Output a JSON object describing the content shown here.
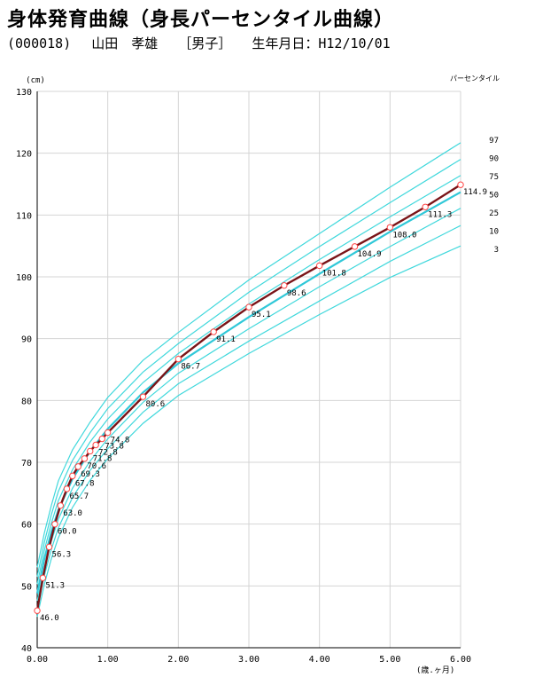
{
  "header": {
    "title": "身体発育曲線（身長パーセンタイル曲線）",
    "patient_id": "(000018)",
    "patient_name": "山田　孝雄",
    "sex": "［男子］",
    "birthdate": "生年月日：H12/10/01"
  },
  "chart_data": {
    "type": "line",
    "title": "身体発育曲線（身長パーセンタイル曲線）",
    "ylabel": "(cm)",
    "xlabel": "(歳.ヶ月)",
    "legend_title": "パーセンタイル",
    "xlim": [
      0,
      6
    ],
    "ylim": [
      40,
      130
    ],
    "x_ticks": [
      0,
      1,
      2,
      3,
      4,
      5,
      6
    ],
    "x_tick_labels": [
      "0.00",
      "1.00",
      "2.00",
      "3.00",
      "4.00",
      "5.00",
      "6.00"
    ],
    "y_ticks": [
      40,
      50,
      60,
      70,
      80,
      90,
      100,
      110,
      120,
      130
    ],
    "y_tick_labels": [
      "40",
      "50",
      "60",
      "70",
      "80",
      "90",
      "100",
      "110",
      "120",
      "130"
    ],
    "grid": true,
    "colors": {
      "percentile": "#40d8dc",
      "percentile50": "#30c8d8",
      "patient": "#7a1418",
      "marker": "#ff4444"
    },
    "percentile_x": [
      0,
      0.1,
      0.2,
      0.3,
      0.5,
      0.75,
      1.0,
      1.5,
      2.0,
      3.0,
      4.0,
      5.0,
      6.0
    ],
    "percentiles": [
      {
        "name": "97",
        "values": [
          53.0,
          58.5,
          63.0,
          67.0,
          72.0,
          76.5,
          80.5,
          86.5,
          91.0,
          99.5,
          107.0,
          114.5,
          121.7
        ]
      },
      {
        "name": "90",
        "values": [
          51.5,
          57.0,
          61.5,
          65.3,
          70.3,
          74.8,
          78.7,
          84.6,
          89.2,
          97.5,
          104.9,
          112.0,
          119.0
        ]
      },
      {
        "name": "75",
        "values": [
          50.3,
          55.7,
          60.1,
          63.8,
          68.8,
          73.3,
          77.0,
          82.9,
          87.6,
          95.6,
          102.8,
          109.7,
          116.4
        ]
      },
      {
        "name": "50",
        "values": [
          48.8,
          54.3,
          58.7,
          62.3,
          67.3,
          71.8,
          75.4,
          81.3,
          86.0,
          93.5,
          100.5,
          107.3,
          113.7
        ]
      },
      {
        "name": "25",
        "values": [
          47.6,
          52.9,
          57.2,
          60.8,
          65.8,
          70.2,
          73.8,
          79.7,
          84.4,
          91.6,
          98.4,
          104.9,
          111.1
        ]
      },
      {
        "name": "10",
        "values": [
          46.4,
          51.6,
          55.9,
          59.4,
          64.3,
          68.7,
          72.2,
          78.1,
          82.7,
          89.6,
          96.1,
          102.5,
          108.3
        ]
      },
      {
        "name": "3",
        "values": [
          45.0,
          50.2,
          54.4,
          57.8,
          62.7,
          67.1,
          70.6,
          76.3,
          80.8,
          87.6,
          93.9,
          99.9,
          105.0
        ]
      }
    ],
    "series": [
      {
        "name": "",
        "x": [
          0,
          0.08,
          0.17,
          0.25,
          0.33,
          0.42,
          0.5,
          0.58,
          0.67,
          0.75,
          0.83,
          0.92,
          1.0,
          1.5,
          2.0,
          2.5,
          3.0,
          3.5,
          4.0,
          4.5,
          5.0,
          5.5,
          6.0
        ],
        "values": [
          46.0,
          51.3,
          56.3,
          60.0,
          63.0,
          65.7,
          67.8,
          69.3,
          70.6,
          71.8,
          72.8,
          73.8,
          74.8,
          80.6,
          86.7,
          91.1,
          95.1,
          98.6,
          101.8,
          104.9,
          108.0,
          111.3,
          114.9
        ],
        "labels": [
          "46.0",
          "51.3",
          "56.3",
          "60.0",
          "63.0",
          "65.7",
          "67.8",
          "69.3",
          "70.6",
          "71.8",
          "72.8",
          "73.8",
          "74.8",
          "80.6",
          "86.7",
          "91.1",
          "95.1",
          "98.6",
          "101.8",
          "104.9",
          "108.0",
          "111.3",
          "114.9"
        ]
      }
    ]
  }
}
